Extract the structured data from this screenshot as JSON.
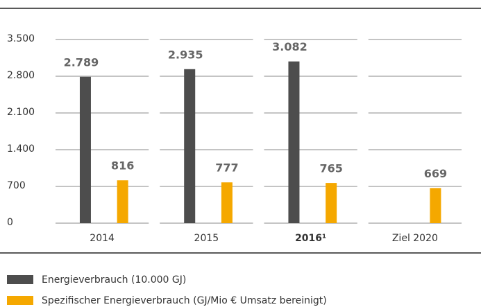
{
  "chart_data": {
    "type": "bar",
    "categories": [
      "2014",
      "2015",
      "2016¹",
      "Ziel 2020"
    ],
    "series": [
      {
        "name": "Energieverbrauch (10.000 GJ)",
        "color": "#4d4d4d",
        "values": [
          2789,
          2935,
          3082,
          null
        ],
        "value_labels": [
          "2.789",
          "2.935",
          "3.082",
          null
        ]
      },
      {
        "name": "Spezifischer Energieverbrauch (GJ/Mio € Umsatz bereinigt)",
        "color": "#f5a800",
        "values": [
          816,
          777,
          765,
          669
        ],
        "value_labels": [
          "816",
          "777",
          "765",
          "669"
        ]
      }
    ],
    "ylim": [
      0,
      3500
    ],
    "yticks": [
      0,
      700,
      {
        "value": 1400,
        "label": "1.400"
      },
      {
        "value": 2100,
        "label": "2.100"
      },
      {
        "value": 2800,
        "label": "2.800"
      },
      {
        "value": 3500,
        "label": "3.500"
      }
    ],
    "grid": true,
    "legend": "bottom"
  }
}
